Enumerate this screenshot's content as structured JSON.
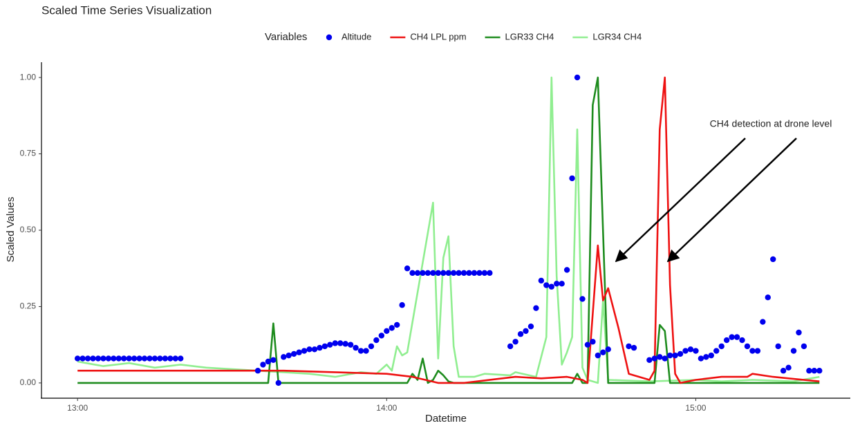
{
  "chart_data": {
    "type": "line",
    "title": "Scaled Time Series Visualization",
    "x_label": "Datetime",
    "y_label": "Scaled Values",
    "legend_title": "Variables",
    "legend_position": "top",
    "grid": false,
    "annotation": "CH4 detection at drone level",
    "xlim": [
      "12:53",
      "15:30"
    ],
    "xticks": [
      "13:00",
      "14:00",
      "15:00"
    ],
    "ylim": [
      -0.05,
      1.05
    ],
    "yticks": [
      {
        "value": 0,
        "label": "0.00"
      },
      {
        "value": 0.25,
        "label": "0.25"
      },
      {
        "value": 0.5,
        "label": "0.50"
      },
      {
        "value": 0.75,
        "label": "0.75"
      },
      {
        "value": 1,
        "label": "1.00"
      }
    ],
    "series": [
      {
        "name": "Altitude",
        "color": "#0000ee",
        "mode": "markers",
        "x": [
          "13:00",
          "13:01",
          "13:02",
          "13:03",
          "13:04",
          "13:05",
          "13:06",
          "13:07",
          "13:08",
          "13:09",
          "13:10",
          "13:11",
          "13:12",
          "13:13",
          "13:14",
          "13:15",
          "13:16",
          "13:17",
          "13:18",
          "13:19",
          "13:20",
          "13:35",
          "13:36",
          "13:37",
          "13:38",
          "13:39",
          "13:40",
          "13:41",
          "13:42",
          "13:43",
          "13:44",
          "13:45",
          "13:46",
          "13:47",
          "13:48",
          "13:49",
          "13:50",
          "13:51",
          "13:52",
          "13:53",
          "13:54",
          "13:55",
          "13:56",
          "13:57",
          "13:58",
          "13:59",
          "14:00",
          "14:01",
          "14:02",
          "14:03",
          "14:04",
          "14:05",
          "14:06",
          "14:07",
          "14:08",
          "14:09",
          "14:10",
          "14:11",
          "14:12",
          "14:13",
          "14:14",
          "14:15",
          "14:16",
          "14:17",
          "14:18",
          "14:19",
          "14:20",
          "14:24",
          "14:25",
          "14:26",
          "14:27",
          "14:28",
          "14:29",
          "14:30",
          "14:31",
          "14:32",
          "14:33",
          "14:34",
          "14:35",
          "14:36",
          "14:37",
          "14:38",
          "14:39",
          "14:40",
          "14:41",
          "14:42",
          "14:43",
          "14:47",
          "14:48",
          "14:51",
          "14:52",
          "14:53",
          "14:54",
          "14:55",
          "14:56",
          "14:57",
          "14:58",
          "14:59",
          "15:00",
          "15:01",
          "15:02",
          "15:03",
          "15:04",
          "15:05",
          "15:06",
          "15:07",
          "15:08",
          "15:09",
          "15:10",
          "15:11",
          "15:12",
          "15:13",
          "15:14",
          "15:15",
          "15:16",
          "15:17",
          "15:18",
          "15:19",
          "15:20",
          "15:21",
          "15:22",
          "15:23",
          "15:24"
        ],
        "values": [
          0.08,
          0.08,
          0.08,
          0.08,
          0.08,
          0.08,
          0.08,
          0.08,
          0.08,
          0.08,
          0.08,
          0.08,
          0.08,
          0.08,
          0.08,
          0.08,
          0.08,
          0.08,
          0.08,
          0.08,
          0.08,
          0.04,
          0.06,
          0.07,
          0.075,
          0,
          0.085,
          0.09,
          0.095,
          0.1,
          0.105,
          0.11,
          0.11,
          0.115,
          0.12,
          0.125,
          0.13,
          0.13,
          0.128,
          0.125,
          0.115,
          0.105,
          0.105,
          0.12,
          0.14,
          0.155,
          0.17,
          0.18,
          0.19,
          0.255,
          0.375,
          0.36,
          0.36,
          0.36,
          0.36,
          0.36,
          0.36,
          0.36,
          0.36,
          0.36,
          0.36,
          0.36,
          0.36,
          0.36,
          0.36,
          0.36,
          0.36,
          0.12,
          0.135,
          0.16,
          0.17,
          0.185,
          0.245,
          0.335,
          0.32,
          0.315,
          0.325,
          0.325,
          0.37,
          0.67,
          1.0,
          0.275,
          0.125,
          0.135,
          0.09,
          0.1,
          0.11,
          0.12,
          0.115,
          0.075,
          0.08,
          0.085,
          0.08,
          0.09,
          0.09,
          0.095,
          0.105,
          0.11,
          0.105,
          0.08,
          0.085,
          0.09,
          0.105,
          0.12,
          0.14,
          0.15,
          0.15,
          0.14,
          0.12,
          0.105,
          0.105,
          0.2,
          0.28,
          0.405,
          0.12,
          0.04,
          0.05,
          0.105,
          0.165,
          0.12,
          0.04,
          0.04,
          0.04
        ]
      },
      {
        "name": "CH4 LPL ppm",
        "color": "#ee1111",
        "mode": "line",
        "x": [
          "13:00",
          "13:40",
          "14:00",
          "14:05",
          "14:10",
          "14:15",
          "14:25",
          "14:30",
          "14:35",
          "14:38",
          "14:39",
          "14:41",
          "14:42",
          "14:43",
          "14:45",
          "14:47",
          "14:51",
          "14:52",
          "14:53",
          "14:54",
          "14:55",
          "14:56",
          "14:57",
          "15:00",
          "15:05",
          "15:10",
          "15:11",
          "15:15",
          "15:18",
          "15:24"
        ],
        "values": [
          0.04,
          0.04,
          0.03,
          0.02,
          0,
          0,
          0.02,
          0.015,
          0.02,
          0.01,
          0,
          0.45,
          0.27,
          0.31,
          0.18,
          0.03,
          0.01,
          0.04,
          0.83,
          1.0,
          0.32,
          0.03,
          0,
          0.01,
          0.02,
          0.02,
          0.03,
          0.02,
          0.015,
          0.005
        ]
      },
      {
        "name": "LGR33 CH4",
        "color": "#1e8c1e",
        "mode": "line",
        "x": [
          "13:00",
          "13:37",
          "13:38",
          "13:39",
          "14:04",
          "14:05",
          "14:06",
          "14:07",
          "14:08",
          "14:09",
          "14:10",
          "14:11",
          "14:12",
          "14:13",
          "14:36",
          "14:37",
          "14:38",
          "14:39",
          "14:40",
          "14:41",
          "14:43",
          "14:52",
          "14:53",
          "14:54",
          "14:55",
          "15:24"
        ],
        "values": [
          0,
          0,
          0.195,
          0,
          0,
          0.03,
          0.01,
          0.08,
          0,
          0.01,
          0.04,
          0.025,
          0.005,
          0,
          0,
          0.03,
          0,
          0,
          0.91,
          1.0,
          0,
          0,
          0.19,
          0.17,
          0,
          0
        ]
      },
      {
        "name": "LGR34 CH4",
        "color": "#90ee90",
        "mode": "line",
        "x": [
          "13:00",
          "13:05",
          "13:10",
          "13:15",
          "13:20",
          "13:25",
          "13:35",
          "13:45",
          "13:50",
          "13:55",
          "13:58",
          "14:00",
          "14:01",
          "14:02",
          "14:03",
          "14:04",
          "14:09",
          "14:10",
          "14:11",
          "14:12",
          "14:13",
          "14:14",
          "14:17",
          "14:19",
          "14:24",
          "14:25",
          "14:29",
          "14:31",
          "14:32",
          "14:33",
          "14:34",
          "14:35",
          "14:36",
          "14:37",
          "14:38",
          "14:39",
          "14:41",
          "14:42",
          "14:43",
          "14:51",
          "15:00",
          "15:05",
          "15:11",
          "15:19",
          "15:24"
        ],
        "values": [
          0.07,
          0.055,
          0.065,
          0.05,
          0.06,
          0.05,
          0.04,
          0.03,
          0.02,
          0.035,
          0.03,
          0.06,
          0.04,
          0.12,
          0.09,
          0.1,
          0.59,
          0.08,
          0.41,
          0.48,
          0.12,
          0.02,
          0.02,
          0.03,
          0.025,
          0.035,
          0.02,
          0.15,
          1.0,
          0.35,
          0.06,
          0.1,
          0.15,
          0.83,
          0.05,
          0.01,
          0,
          0.27,
          0.01,
          0.005,
          0.01,
          0.005,
          0.01,
          0.005,
          0.02
        ]
      }
    ]
  }
}
